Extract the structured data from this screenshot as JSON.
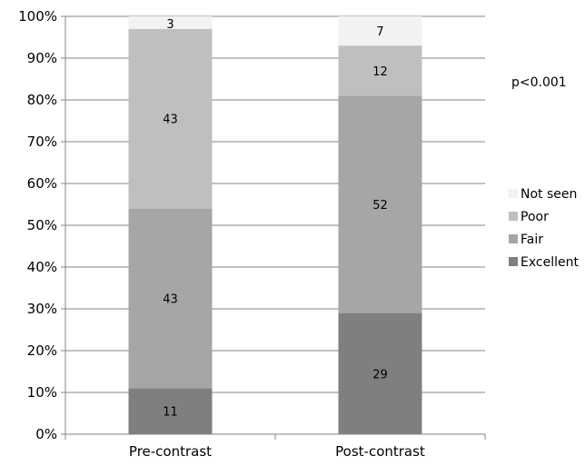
{
  "chart_data": {
    "type": "bar",
    "stacked": true,
    "categories": [
      "Pre-contrast",
      "Post-contrast"
    ],
    "series": [
      {
        "name": "Excellent",
        "values": [
          11,
          29
        ],
        "color": "#7f7f7f"
      },
      {
        "name": "Fair",
        "values": [
          43,
          52
        ],
        "color": "#a6a6a6"
      },
      {
        "name": "Poor",
        "values": [
          43,
          12
        ],
        "color": "#bfbfbf"
      },
      {
        "name": "Not seen",
        "values": [
          3,
          7
        ],
        "color": "#f2f2f2"
      }
    ],
    "data_labels": [
      [
        "11",
        "29"
      ],
      [
        "43",
        "52"
      ],
      [
        "43",
        "12"
      ],
      [
        "3",
        "7"
      ]
    ],
    "totals": [
      100,
      100
    ],
    "y_ticks": [
      "0%",
      "10%",
      "20%",
      "30%",
      "40%",
      "50%",
      "60%",
      "70%",
      "80%",
      "90%",
      "100%"
    ],
    "ylim": [
      0,
      100
    ],
    "grid": true,
    "legend_placement": "right",
    "annotation": "p<0.001",
    "title": "",
    "xlabel": "",
    "ylabel": ""
  }
}
